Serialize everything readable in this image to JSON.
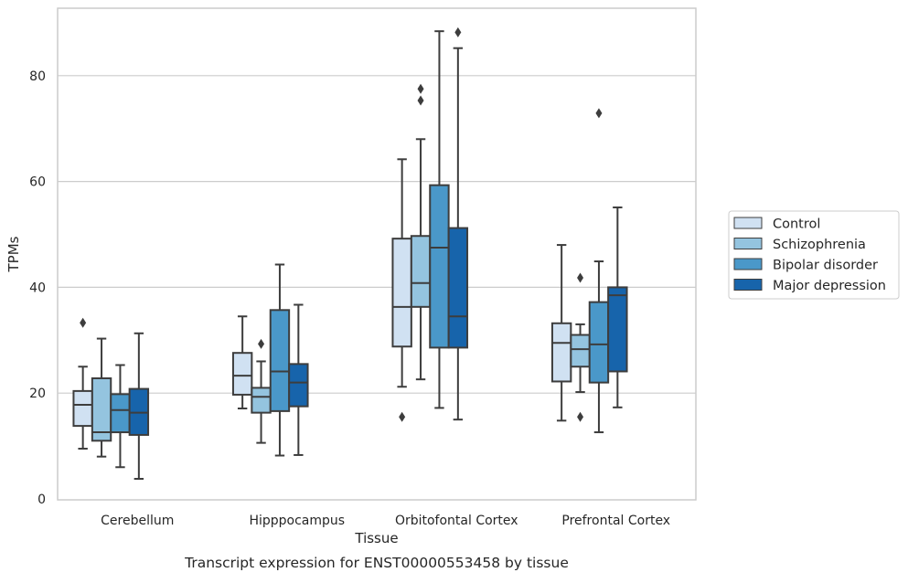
{
  "chart_data": {
    "type": "boxplot",
    "title": "Transcript expression for ENST00000553458 by tissue",
    "xlabel": "Tissue",
    "ylabel": "TPMs",
    "ylim": [
      0,
      93
    ],
    "yticks": [
      0,
      20,
      40,
      60,
      80
    ],
    "grid": true,
    "legend_position": "right",
    "categories": [
      "Cerebellum",
      "Hipppocampus",
      "Orbitofontal Cortex",
      "Prefrontal Cortex"
    ],
    "series": [
      {
        "name": "Control",
        "color": "#d0e1f2",
        "boxes": [
          {
            "whislo": 9.5,
            "q1": 13.8,
            "med": 17.8,
            "q3": 20.4,
            "whishi": 25.0,
            "fliers": [
              33.3
            ]
          },
          {
            "whislo": 17.1,
            "q1": 19.7,
            "med": 23.3,
            "q3": 27.6,
            "whishi": 34.5,
            "fliers": []
          },
          {
            "whislo": 21.2,
            "q1": 28.8,
            "med": 36.3,
            "q3": 49.2,
            "whishi": 64.2,
            "fliers": [
              15.5
            ]
          },
          {
            "whislo": 14.8,
            "q1": 22.2,
            "med": 29.5,
            "q3": 33.2,
            "whishi": 48.0,
            "fliers": []
          }
        ]
      },
      {
        "name": "Schizophrenia",
        "color": "#94c4df",
        "boxes": [
          {
            "whislo": 8.0,
            "q1": 11.0,
            "med": 12.6,
            "q3": 22.8,
            "whishi": 30.3,
            "fliers": []
          },
          {
            "whislo": 10.6,
            "q1": 16.3,
            "med": 19.3,
            "q3": 21.0,
            "whishi": 26.0,
            "fliers": [
              29.3
            ]
          },
          {
            "whislo": 22.6,
            "q1": 36.3,
            "med": 40.8,
            "q3": 49.7,
            "whishi": 68.0,
            "fliers": [
              75.3,
              77.5
            ]
          },
          {
            "whislo": 20.2,
            "q1": 25.0,
            "med": 28.3,
            "q3": 31.0,
            "whishi": 33.0,
            "fliers": [
              41.8,
              15.5
            ]
          }
        ]
      },
      {
        "name": "Bipolar disorder",
        "color": "#4a98c9",
        "boxes": [
          {
            "whislo": 6.0,
            "q1": 12.6,
            "med": 16.8,
            "q3": 19.8,
            "whishi": 25.3,
            "fliers": []
          },
          {
            "whislo": 8.2,
            "q1": 16.6,
            "med": 24.1,
            "q3": 35.7,
            "whishi": 44.3,
            "fliers": []
          },
          {
            "whislo": 17.2,
            "q1": 28.6,
            "med": 47.5,
            "q3": 59.3,
            "whishi": 88.4,
            "fliers": []
          },
          {
            "whislo": 12.6,
            "q1": 22.0,
            "med": 29.2,
            "q3": 37.2,
            "whishi": 44.9,
            "fliers": [
              72.9
            ]
          }
        ]
      },
      {
        "name": "Major depression",
        "color": "#1764ab",
        "boxes": [
          {
            "whislo": 3.8,
            "q1": 12.1,
            "med": 16.3,
            "q3": 20.8,
            "whishi": 31.3,
            "fliers": []
          },
          {
            "whislo": 8.3,
            "q1": 17.5,
            "med": 22.0,
            "q3": 25.5,
            "whishi": 36.7,
            "fliers": []
          },
          {
            "whislo": 15.0,
            "q1": 28.6,
            "med": 34.5,
            "q3": 51.2,
            "whishi": 85.2,
            "fliers": [
              88.2
            ]
          },
          {
            "whislo": 17.3,
            "q1": 24.1,
            "med": 38.5,
            "q3": 40.0,
            "whishi": 55.1,
            "fliers": []
          }
        ]
      }
    ]
  }
}
